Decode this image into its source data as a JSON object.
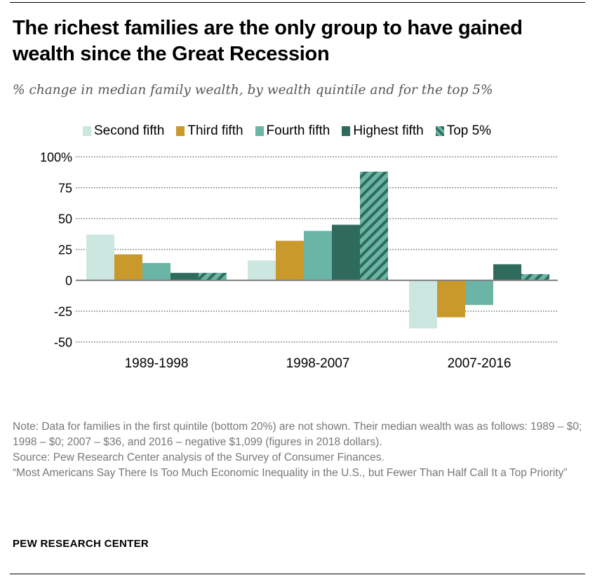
{
  "title": "The richest families are the only group to have gained wealth since the Great Recession",
  "subtitle": "% change in median family wealth, by wealth quintile and for the top 5%",
  "note": "Note: Data for families in the first quintile (bottom 20%) are not shown. Their median wealth was as follows: 1989 – $0; 1998 – $0; 2007 – $36, and 2016 – negative $1,099 (figures in 2018 dollars).",
  "source": "Source: Pew Research Center analysis of the Survey of Consumer Finances.",
  "report": "“Most Americans Say There Is Too Much Economic Inequality in the U.S., but Fewer Than Half Call It a Top Priority”",
  "brand": "PEW RESEARCH CENTER",
  "chart_data": {
    "type": "bar",
    "categories": [
      "1989-1998",
      "1998-2007",
      "2007-2016"
    ],
    "ylim": [
      -50,
      100
    ],
    "yticks": [
      100,
      75,
      50,
      25,
      0,
      -25,
      -50
    ],
    "ytick_labels": [
      "100%",
      "75",
      "50",
      "25",
      "0",
      "-25",
      "-50"
    ],
    "grid": true,
    "legend": "top",
    "series": [
      {
        "name": "Second fifth",
        "color": "#cce6e0",
        "pattern": false,
        "values": [
          37,
          16,
          -39
        ]
      },
      {
        "name": "Third fifth",
        "color": "#c99a2b",
        "pattern": false,
        "values": [
          21,
          32,
          -30
        ]
      },
      {
        "name": "Fourth fifth",
        "color": "#6ab5a5",
        "pattern": false,
        "values": [
          14,
          40,
          -20
        ]
      },
      {
        "name": "Highest fifth",
        "color": "#2f6b5c",
        "pattern": false,
        "values": [
          6,
          45,
          13
        ]
      },
      {
        "name": "Top 5%",
        "color": "#6ab5a5",
        "pattern": true,
        "values": [
          6,
          88,
          5
        ]
      }
    ]
  }
}
